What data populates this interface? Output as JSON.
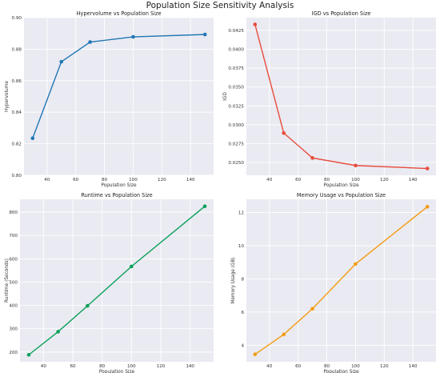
{
  "suptitle": "Population Size Sensitivity Analysis",
  "chart_data": [
    {
      "type": "line",
      "title": "Hypervolume vs Population Size",
      "xlabel": "Population Size",
      "ylabel": "Hypervolume",
      "x": [
        30,
        50,
        70,
        100,
        150
      ],
      "series": [
        {
          "values": [
            0.8235,
            0.872,
            0.8845,
            0.8878,
            0.8893
          ]
        }
      ],
      "xlim": [
        24,
        156
      ],
      "ylim": [
        0.8,
        0.9
      ],
      "xticks": [
        40,
        60,
        80,
        100,
        120,
        140
      ],
      "yticks": [
        0.8,
        0.82,
        0.84,
        0.86,
        0.88,
        0.9
      ],
      "ytick_decimals": 2,
      "grid": true,
      "color": "#1f77b4"
    },
    {
      "type": "line",
      "title": "IGD vs Population Size",
      "xlabel": "Population Size",
      "ylabel": "IGD",
      "x": [
        30,
        50,
        70,
        100,
        150
      ],
      "series": [
        {
          "values": [
            0.0433,
            0.0289,
            0.0256,
            0.0246,
            0.0242
          ]
        }
      ],
      "xlim": [
        24,
        156
      ],
      "ylim": [
        0.0233,
        0.0442
      ],
      "xticks": [
        40,
        60,
        80,
        100,
        120,
        140
      ],
      "yticks": [
        0.025,
        0.0275,
        0.03,
        0.0325,
        0.035,
        0.0375,
        0.04,
        0.0425
      ],
      "ytick_decimals": 4,
      "grid": true,
      "color": "#e74c3c"
    },
    {
      "type": "line",
      "title": "Runtime vs Population Size",
      "xlabel": "Population Size",
      "ylabel": "Runtime (Seconds)",
      "x": [
        30,
        50,
        70,
        100,
        150
      ],
      "series": [
        {
          "values": [
            188,
            287,
            398,
            567,
            825
          ]
        }
      ],
      "xlim": [
        24,
        156
      ],
      "ylim": [
        158,
        855
      ],
      "xticks": [
        40,
        60,
        80,
        100,
        120,
        140
      ],
      "yticks": [
        200,
        300,
        400,
        500,
        600,
        700,
        800
      ],
      "ytick_decimals": 0,
      "grid": true,
      "color": "#0aa05a"
    },
    {
      "type": "line",
      "title": "Memory Usage vs Population Size",
      "xlabel": "Population Size",
      "ylabel": "Memory Usage (GB)",
      "x": [
        30,
        50,
        70,
        100,
        150
      ],
      "series": [
        {
          "values": [
            3.45,
            4.65,
            6.2,
            8.9,
            12.35
          ]
        }
      ],
      "xlim": [
        24,
        156
      ],
      "ylim": [
        3.0,
        12.8
      ],
      "xticks": [
        40,
        60,
        80,
        100,
        120,
        140
      ],
      "yticks": [
        4,
        6,
        8,
        10,
        12
      ],
      "ytick_decimals": 0,
      "grid": true,
      "color": "#f39c12"
    }
  ]
}
